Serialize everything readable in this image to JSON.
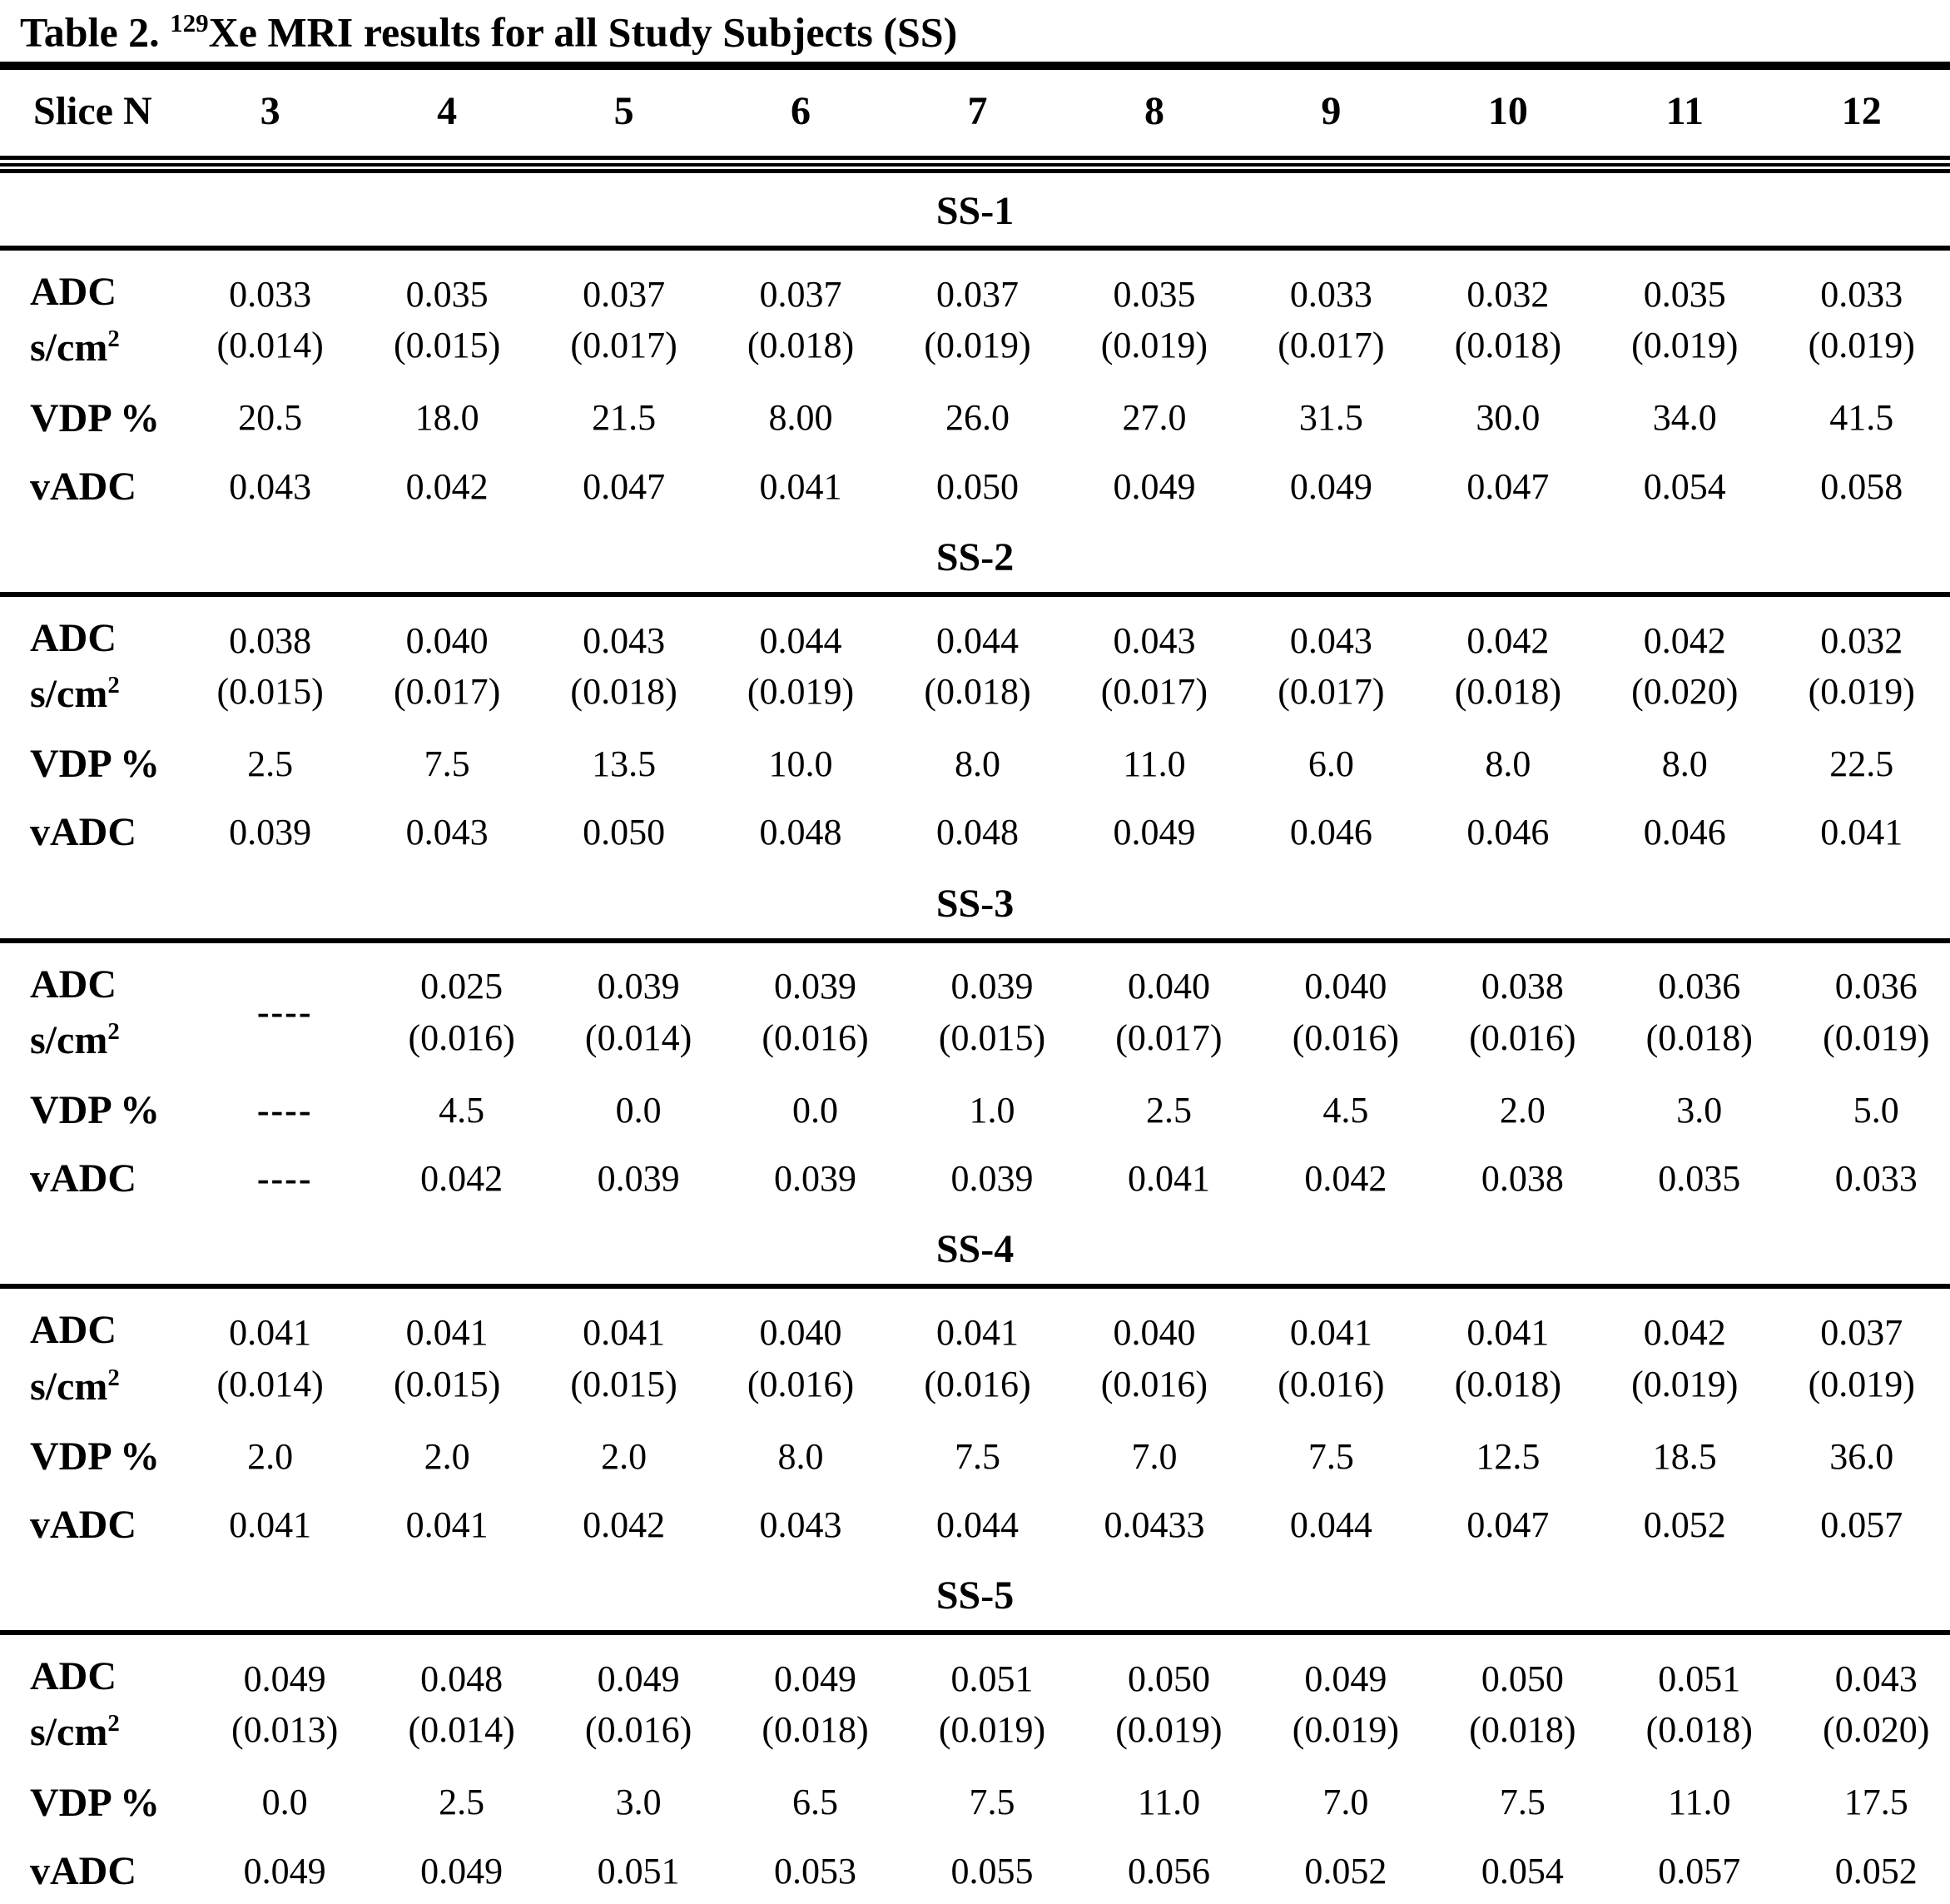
{
  "title": {
    "prefix": "Table 2. ",
    "isotope": "129",
    "rest": "Xe MRI results for all Study Subjects (SS)"
  },
  "header": {
    "label": "Slice N",
    "slices": [
      "3",
      "4",
      "5",
      "6",
      "7",
      "8",
      "9",
      "10",
      "11",
      "12"
    ]
  },
  "row_labels": {
    "adc_line1": "ADC",
    "adc_units_pre": "s/cm",
    "adc_units_sup": "2",
    "vdp": "VDP %",
    "vadc": "vADC"
  },
  "colors": {
    "text": "#000000",
    "background": "#ffffff"
  },
  "sections": [
    {
      "name": "SS-1",
      "shift_right": false,
      "adc": [
        "0.033",
        "0.035",
        "0.037",
        "0.037",
        "0.037",
        "0.035",
        "0.033",
        "0.032",
        "0.035",
        "0.033"
      ],
      "adc_sd": [
        "(0.014)",
        "(0.015)",
        "(0.017)",
        "(0.018)",
        "(0.019)",
        "(0.019)",
        "(0.017)",
        "(0.018)",
        "(0.019)",
        "(0.019)"
      ],
      "vdp": [
        "20.5",
        "18.0",
        "21.5",
        "8.00",
        "26.0",
        "27.0",
        "31.5",
        "30.0",
        "34.0",
        "41.5"
      ],
      "vadc": [
        "0.043",
        "0.042",
        "0.047",
        "0.041",
        "0.050",
        "0.049",
        "0.049",
        "0.047",
        "0.054",
        "0.058"
      ]
    },
    {
      "name": "SS-2",
      "shift_right": false,
      "adc": [
        "0.038",
        "0.040",
        "0.043",
        "0.044",
        "0.044",
        "0.043",
        "0.043",
        "0.042",
        "0.042",
        "0.032"
      ],
      "adc_sd": [
        "(0.015)",
        "(0.017)",
        "(0.018)",
        "(0.019)",
        "(0.018)",
        "(0.017)",
        "(0.017)",
        "(0.018)",
        "(0.020)",
        "(0.019)"
      ],
      "vdp": [
        "2.5",
        "7.5",
        "13.5",
        "10.0",
        "8.0",
        "11.0",
        "6.0",
        "8.0",
        "8.0",
        "22.5"
      ],
      "vadc": [
        "0.039",
        "0.043",
        "0.050",
        "0.048",
        "0.048",
        "0.049",
        "0.046",
        "0.046",
        "0.046",
        "0.041"
      ]
    },
    {
      "name": "SS-3",
      "shift_right": true,
      "adc": [
        "----",
        "0.025",
        "0.039",
        "0.039",
        "0.039",
        "0.040",
        "0.040",
        "0.038",
        "0.036",
        "0.036"
      ],
      "adc_sd": [
        "",
        "(0.016)",
        "(0.014)",
        "(0.016)",
        "(0.015)",
        "(0.017)",
        "(0.016)",
        "(0.016)",
        "(0.018)",
        "(0.019)"
      ],
      "vdp": [
        "----",
        "4.5",
        "0.0",
        "0.0",
        "1.0",
        "2.5",
        "4.5",
        "2.0",
        "3.0",
        "5.0"
      ],
      "vadc": [
        "----",
        "0.042",
        "0.039",
        "0.039",
        "0.039",
        "0.041",
        "0.042",
        "0.038",
        "0.035",
        "0.033"
      ]
    },
    {
      "name": "SS-4",
      "shift_right": false,
      "adc": [
        "0.041",
        "0.041",
        "0.041",
        "0.040",
        "0.041",
        "0.040",
        "0.041",
        "0.041",
        "0.042",
        "0.037"
      ],
      "adc_sd": [
        "(0.014)",
        "(0.015)",
        "(0.015)",
        "(0.016)",
        "(0.016)",
        "(0.016)",
        "(0.016)",
        "(0.018)",
        "(0.019)",
        "(0.019)"
      ],
      "vdp": [
        "2.0",
        "2.0",
        "2.0",
        "8.0",
        "7.5",
        "7.0",
        "7.5",
        "12.5",
        "18.5",
        "36.0"
      ],
      "vadc": [
        "0.041",
        "0.041",
        "0.042",
        "0.043",
        "0.044",
        "0.0433",
        "0.044",
        "0.047",
        "0.052",
        "0.057"
      ]
    },
    {
      "name": "SS-5",
      "shift_right": true,
      "adc": [
        "0.049",
        "0.048",
        "0.049",
        "0.049",
        "0.051",
        "0.050",
        "0.049",
        "0.050",
        "0.051",
        "0.043"
      ],
      "adc_sd": [
        "(0.013)",
        "(0.014)",
        "(0.016)",
        "(0.018)",
        "(0.019)",
        "(0.019)",
        "(0.019)",
        "(0.018)",
        "(0.018)",
        "(0.020)"
      ],
      "vdp": [
        "0.0",
        "2.5",
        "3.0",
        "6.5",
        "7.5",
        "11.0",
        "7.0",
        "7.5",
        "11.0",
        "17.5"
      ],
      "vadc": [
        "0.049",
        "0.049",
        "0.051",
        "0.053",
        "0.055",
        "0.056",
        "0.052",
        "0.054",
        "0.057",
        "0.052"
      ]
    }
  ]
}
